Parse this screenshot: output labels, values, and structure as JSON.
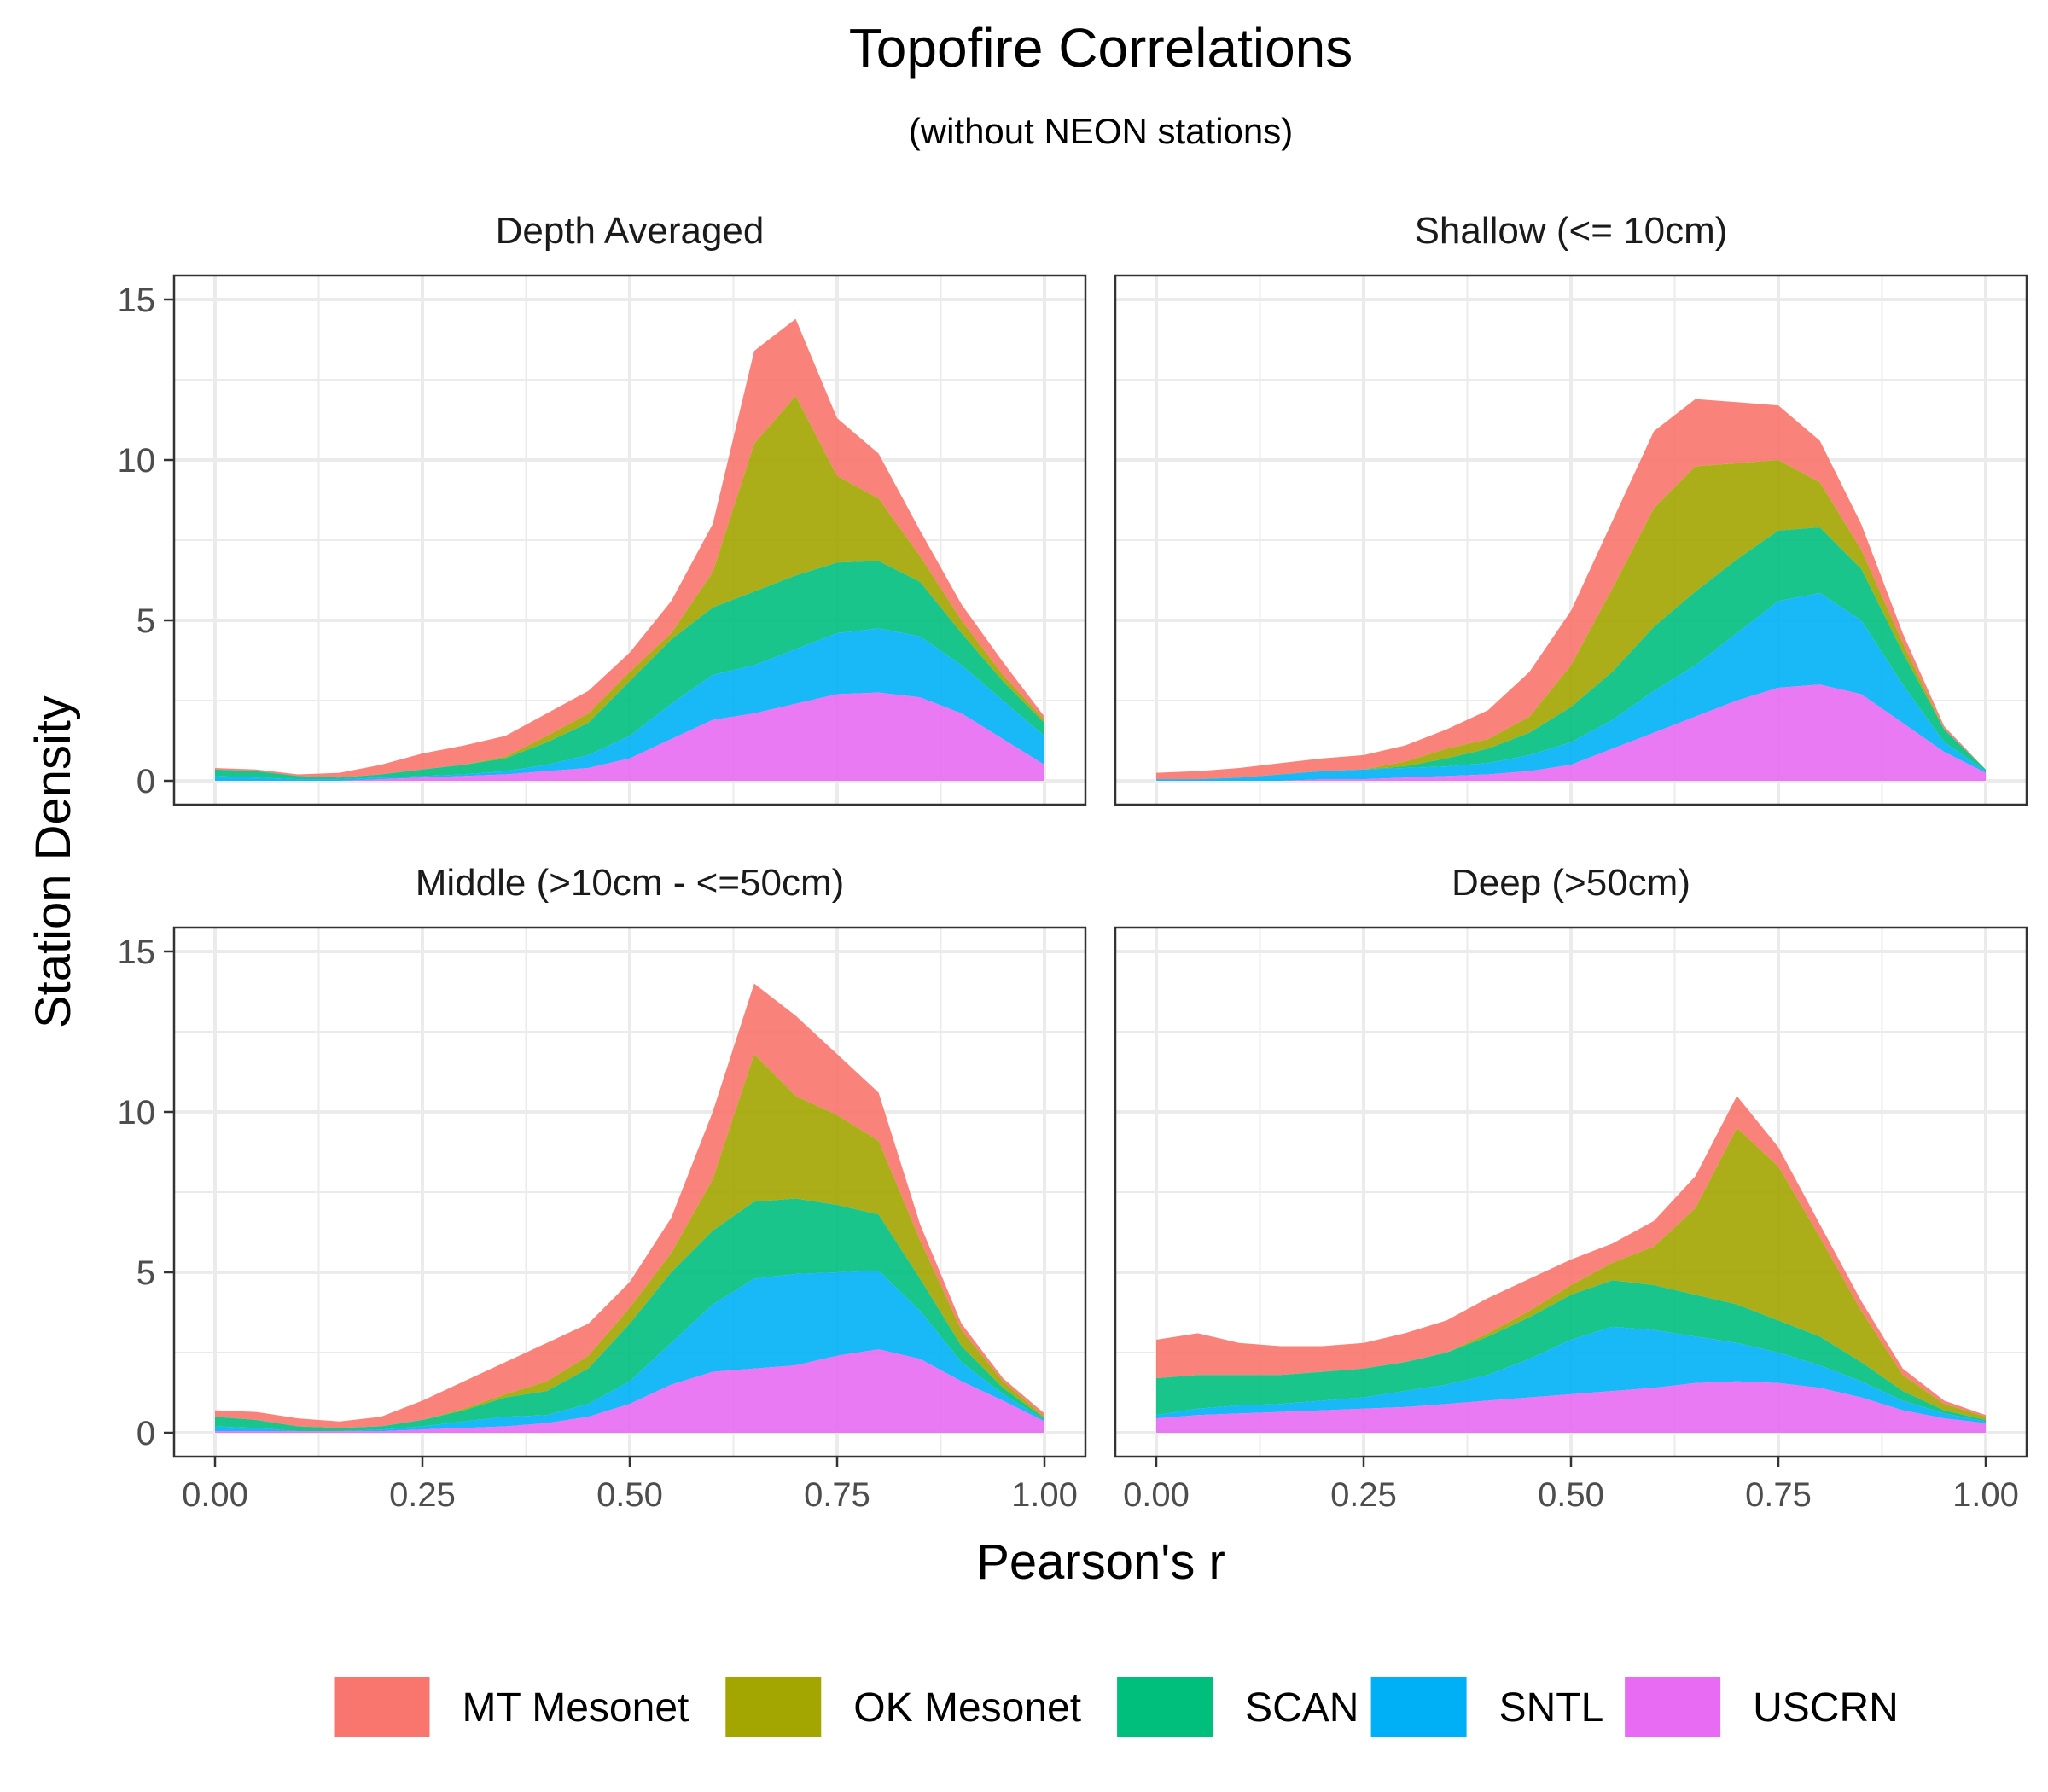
{
  "chart_data": {
    "type": "area",
    "title": "Topofire Correlations",
    "subtitle": "(without NEON stations)",
    "xlabel": "Pearson's r",
    "ylabel": "Station Density",
    "xlim": [
      0,
      1
    ],
    "ylim": [
      0,
      15
    ],
    "x_ticks": [
      "0.00",
      "0.25",
      "0.50",
      "0.75",
      "1.00"
    ],
    "y_ticks": [
      "0",
      "5",
      "10",
      "15"
    ],
    "grid": true,
    "stacked": true,
    "legend_position": "bottom",
    "series_order": [
      "USCRN",
      "SNTL",
      "SCAN",
      "OK Mesonet",
      "MT Mesonet"
    ],
    "legend": [
      {
        "name": "MT Mesonet",
        "color": "#F8766D"
      },
      {
        "name": "OK Mesonet",
        "color": "#A3A500"
      },
      {
        "name": "SCAN",
        "color": "#00BF7D"
      },
      {
        "name": "SNTL",
        "color": "#00B0F6"
      },
      {
        "name": "USCRN",
        "color": "#E76BF3"
      }
    ],
    "x": [
      0,
      0.05,
      0.1,
      0.15,
      0.2,
      0.25,
      0.3,
      0.35,
      0.4,
      0.45,
      0.5,
      0.55,
      0.6,
      0.65,
      0.7,
      0.75,
      0.8,
      0.85,
      0.9,
      0.95,
      1.0
    ],
    "panels": [
      {
        "title": "Depth Averaged",
        "cumulative": {
          "USCRN": [
            0.0,
            0.0,
            0.0,
            0.0,
            0.05,
            0.1,
            0.15,
            0.2,
            0.3,
            0.4,
            0.7,
            1.3,
            1.9,
            2.1,
            2.4,
            2.7,
            2.75,
            2.6,
            2.1,
            1.3,
            0.5
          ],
          "SNTL": [
            0.15,
            0.1,
            0.05,
            0.05,
            0.1,
            0.15,
            0.2,
            0.3,
            0.5,
            0.8,
            1.4,
            2.4,
            3.3,
            3.6,
            4.1,
            4.6,
            4.75,
            4.5,
            3.6,
            2.5,
            1.4
          ],
          "SCAN": [
            0.35,
            0.3,
            0.15,
            0.1,
            0.2,
            0.35,
            0.5,
            0.7,
            1.2,
            1.8,
            3.1,
            4.4,
            5.4,
            5.9,
            6.4,
            6.8,
            6.85,
            6.2,
            4.6,
            3.1,
            1.8
          ],
          "OK Mesonet": [
            0.35,
            0.3,
            0.15,
            0.1,
            0.2,
            0.35,
            0.5,
            0.75,
            1.4,
            2.1,
            3.4,
            4.6,
            6.5,
            10.5,
            12.0,
            9.5,
            8.8,
            7.0,
            5.0,
            3.3,
            1.9
          ],
          "MT Mesonet": [
            0.4,
            0.35,
            0.2,
            0.25,
            0.5,
            0.85,
            1.1,
            1.4,
            2.1,
            2.8,
            4.0,
            5.6,
            8.0,
            13.4,
            14.4,
            11.3,
            10.2,
            7.8,
            5.5,
            3.7,
            2.0
          ]
        }
      },
      {
        "title": "Shallow (<= 10cm)",
        "cumulative": {
          "USCRN": [
            0.0,
            0.0,
            0.0,
            0.0,
            0.05,
            0.05,
            0.1,
            0.15,
            0.2,
            0.3,
            0.5,
            1.0,
            1.5,
            2.0,
            2.5,
            2.9,
            3.0,
            2.7,
            1.8,
            0.9,
            0.25
          ],
          "SNTL": [
            0.05,
            0.05,
            0.1,
            0.2,
            0.3,
            0.35,
            0.4,
            0.45,
            0.55,
            0.8,
            1.2,
            1.9,
            2.8,
            3.6,
            4.6,
            5.6,
            5.85,
            5.0,
            3.0,
            1.2,
            0.3
          ],
          "SCAN": [
            0.05,
            0.05,
            0.1,
            0.2,
            0.3,
            0.35,
            0.45,
            0.7,
            1.0,
            1.5,
            2.3,
            3.4,
            4.8,
            5.9,
            6.9,
            7.8,
            7.9,
            6.6,
            4.0,
            1.6,
            0.35
          ],
          "OK Mesonet": [
            0.05,
            0.05,
            0.1,
            0.2,
            0.3,
            0.35,
            0.6,
            1.0,
            1.3,
            2.0,
            3.6,
            6.0,
            8.5,
            9.8,
            9.9,
            10.0,
            9.3,
            7.2,
            4.3,
            1.6,
            0.35
          ],
          "MT Mesonet": [
            0.25,
            0.3,
            0.4,
            0.55,
            0.7,
            0.8,
            1.1,
            1.6,
            2.2,
            3.4,
            5.3,
            8.1,
            10.9,
            11.9,
            11.8,
            11.7,
            10.6,
            8.0,
            4.6,
            1.7,
            0.35
          ]
        }
      },
      {
        "title": "Middle (>10cm - <=50cm)",
        "cumulative": {
          "USCRN": [
            0.05,
            0.05,
            0.05,
            0.05,
            0.05,
            0.1,
            0.15,
            0.2,
            0.3,
            0.5,
            0.9,
            1.5,
            1.9,
            2.0,
            2.1,
            2.4,
            2.6,
            2.3,
            1.6,
            1.0,
            0.35
          ],
          "SNTL": [
            0.2,
            0.15,
            0.05,
            0.05,
            0.1,
            0.2,
            0.35,
            0.5,
            0.55,
            0.9,
            1.6,
            2.8,
            4.0,
            4.8,
            4.95,
            5.0,
            5.05,
            3.8,
            2.2,
            1.2,
            0.4
          ],
          "SCAN": [
            0.5,
            0.4,
            0.2,
            0.15,
            0.2,
            0.4,
            0.7,
            1.1,
            1.3,
            2.0,
            3.4,
            5.0,
            6.3,
            7.2,
            7.3,
            7.1,
            6.8,
            4.8,
            2.7,
            1.4,
            0.45
          ],
          "OK Mesonet": [
            0.5,
            0.4,
            0.2,
            0.15,
            0.2,
            0.4,
            0.75,
            1.2,
            1.6,
            2.4,
            3.9,
            5.6,
            7.9,
            11.8,
            10.5,
            9.9,
            9.1,
            6.0,
            3.2,
            1.6,
            0.5
          ],
          "MT Mesonet": [
            0.7,
            0.65,
            0.45,
            0.35,
            0.5,
            1.0,
            1.6,
            2.2,
            2.8,
            3.4,
            4.7,
            6.7,
            10.0,
            14.0,
            13.0,
            11.8,
            10.6,
            6.5,
            3.4,
            1.7,
            0.6
          ]
        }
      },
      {
        "title": "Deep (>50cm)",
        "cumulative": {
          "USCRN": [
            0.45,
            0.55,
            0.6,
            0.65,
            0.7,
            0.75,
            0.8,
            0.9,
            1.0,
            1.1,
            1.2,
            1.3,
            1.4,
            1.55,
            1.6,
            1.55,
            1.4,
            1.1,
            0.7,
            0.45,
            0.3
          ],
          "SNTL": [
            0.55,
            0.75,
            0.85,
            0.9,
            1.0,
            1.1,
            1.3,
            1.5,
            1.8,
            2.3,
            2.9,
            3.3,
            3.2,
            3.0,
            2.8,
            2.5,
            2.1,
            1.6,
            1.0,
            0.6,
            0.35
          ],
          "SCAN": [
            1.7,
            1.8,
            1.8,
            1.8,
            1.9,
            2.0,
            2.2,
            2.5,
            3.0,
            3.6,
            4.3,
            4.75,
            4.6,
            4.3,
            4.0,
            3.5,
            3.0,
            2.2,
            1.3,
            0.7,
            0.4
          ],
          "OK Mesonet": [
            1.7,
            1.8,
            1.8,
            1.8,
            1.9,
            2.0,
            2.2,
            2.5,
            3.1,
            3.8,
            4.6,
            5.3,
            5.8,
            7.0,
            9.5,
            8.3,
            6.1,
            3.8,
            1.8,
            0.9,
            0.5
          ],
          "MT Mesonet": [
            2.9,
            3.1,
            2.8,
            2.7,
            2.7,
            2.8,
            3.1,
            3.5,
            4.2,
            4.8,
            5.4,
            5.9,
            6.6,
            8.0,
            10.5,
            8.9,
            6.5,
            4.1,
            2.0,
            1.0,
            0.55
          ]
        }
      }
    ]
  }
}
